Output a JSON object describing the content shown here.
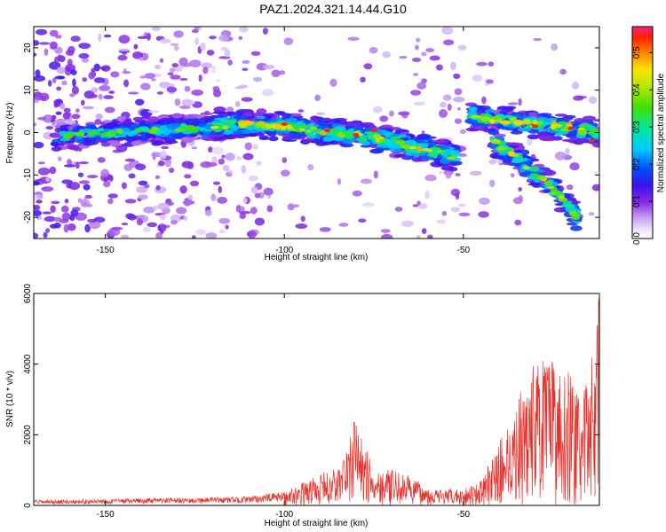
{
  "figure": {
    "title": "PAZ1.2024.321.14.44.G10"
  },
  "chart_data": [
    {
      "type": "heatmap",
      "xlabel": "Height of straight line (km)",
      "ylabel": "Frequency (Hz)",
      "xlim": [
        -170,
        -12
      ],
      "ylim": [
        -25,
        25
      ],
      "xticks": [
        -150,
        -100,
        -50
      ],
      "yticks": [
        -20,
        -10,
        0,
        10,
        20
      ],
      "colorbar": {
        "label": "Normalized spectral amplitude",
        "range": [
          0.0,
          0.57
        ],
        "ticks": [
          0.0,
          0.1,
          0.2,
          0.3,
          0.4,
          0.5
        ]
      },
      "ridges": [
        {
          "x": [
            -165,
            -150,
            -135,
            -120,
            -110,
            -100,
            -90,
            -80,
            -70,
            -60,
            -52
          ],
          "y": [
            -1,
            0,
            0.5,
            1.5,
            2,
            1.5,
            0.5,
            -0.5,
            -2,
            -4,
            -6
          ]
        },
        {
          "x": [
            -48,
            -40,
            -30,
            -20,
            -12
          ],
          "y": [
            4,
            3,
            2,
            1,
            0
          ]
        },
        {
          "x": [
            -42,
            -35,
            -28,
            -22,
            -18
          ],
          "y": [
            -2,
            -6,
            -11,
            -16,
            -20
          ]
        }
      ],
      "peak_value": 0.57,
      "peak_location": {
        "x": -14,
        "y": -2
      }
    },
    {
      "type": "line",
      "xlabel": "Height of straight line (km)",
      "ylabel": "SNR (10 * v/v)",
      "xlim": [
        -170,
        -12
      ],
      "ylim": [
        0,
        6000
      ],
      "xticks": [
        -150,
        -100,
        -50
      ],
      "yticks": [
        0,
        2000,
        4000,
        6000
      ],
      "series": [
        {
          "color": "#e8302a",
          "envelope": {
            "x": [
              -170,
              -140,
              -110,
              -100,
              -95,
              -90,
              -85,
              -80,
              -75,
              -70,
              -65,
              -60,
              -55,
              -50,
              -45,
              -40,
              -35,
              -30,
              -25,
              -20,
              -17,
              -15,
              -13,
              -12
            ],
            "y": [
              150,
              200,
              250,
              400,
              650,
              900,
              1100,
              2350,
              1100,
              1000,
              850,
              500,
              450,
              500,
              700,
              1800,
              3000,
              4200,
              4100,
              3800,
              2800,
              4000,
              5000,
              6000
            ]
          }
        }
      ]
    }
  ]
}
